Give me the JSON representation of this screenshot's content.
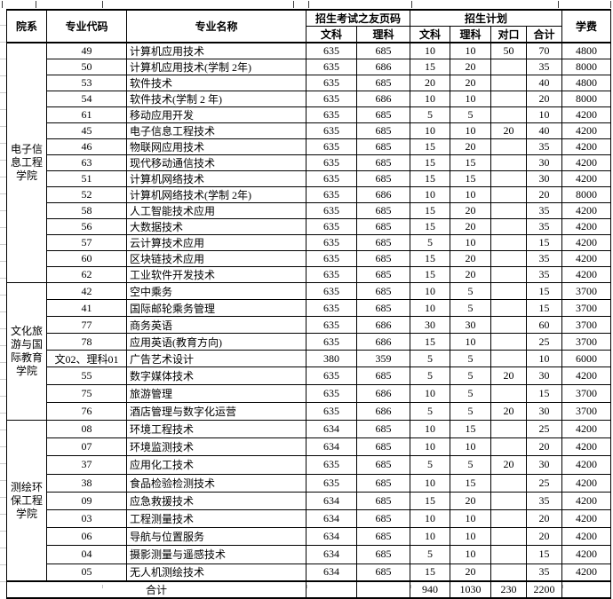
{
  "header": {
    "col_department": "院系",
    "col_major_code": "专业代码",
    "col_major_name": "专业名称",
    "group_page": "招生考试之友页码",
    "group_plan": "招生计划",
    "col_page_wenke": "文科",
    "col_page_like": "理科",
    "col_plan_wenke": "文科",
    "col_plan_like": "理科",
    "col_duikou": "对口",
    "col_heji": "合计",
    "col_tuition": "学费"
  },
  "sections": [
    {
      "department": "电子信息工程学院",
      "rows": [
        {
          "code": "49",
          "name": "计算机应用技术",
          "page_wen": "635",
          "page_li": "685",
          "plan_wen": "10",
          "plan_li": "10",
          "duikou": "50",
          "heji": "70",
          "tuition": "4800"
        },
        {
          "code": "50",
          "name": "计算机应用技术(学制 2年)",
          "page_wen": "635",
          "page_li": "686",
          "plan_wen": "15",
          "plan_li": "20",
          "duikou": "",
          "heji": "35",
          "tuition": "8000"
        },
        {
          "code": "53",
          "name": "软件技术",
          "page_wen": "635",
          "page_li": "685",
          "plan_wen": "20",
          "plan_li": "20",
          "duikou": "",
          "heji": "40",
          "tuition": "4800"
        },
        {
          "code": "54",
          "name": "软件技术(学制 2 年)",
          "page_wen": "635",
          "page_li": "686",
          "plan_wen": "10",
          "plan_li": "10",
          "duikou": "",
          "heji": "20",
          "tuition": "8000"
        },
        {
          "code": "61",
          "name": "移动应用开发",
          "page_wen": "635",
          "page_li": "685",
          "plan_wen": "5",
          "plan_li": "5",
          "duikou": "",
          "heji": "10",
          "tuition": "4200"
        },
        {
          "code": "45",
          "name": "电子信息工程技术",
          "page_wen": "635",
          "page_li": "685",
          "plan_wen": "10",
          "plan_li": "10",
          "duikou": "20",
          "heji": "40",
          "tuition": "4200"
        },
        {
          "code": "46",
          "name": "物联网应用技术",
          "page_wen": "635",
          "page_li": "685",
          "plan_wen": "15",
          "plan_li": "20",
          "duikou": "",
          "heji": "35",
          "tuition": "4200"
        },
        {
          "code": "63",
          "name": "现代移动通信技术",
          "page_wen": "635",
          "page_li": "685",
          "plan_wen": "15",
          "plan_li": "15",
          "duikou": "",
          "heji": "30",
          "tuition": "4200"
        },
        {
          "code": "51",
          "name": "计算机网络技术",
          "page_wen": "635",
          "page_li": "685",
          "plan_wen": "15",
          "plan_li": "15",
          "duikou": "",
          "heji": "30",
          "tuition": "4200"
        },
        {
          "code": "52",
          "name": "计算机网络技术(学制 2年)",
          "page_wen": "635",
          "page_li": "686",
          "plan_wen": "10",
          "plan_li": "10",
          "duikou": "",
          "heji": "20",
          "tuition": "8000"
        },
        {
          "code": "58",
          "name": "人工智能技术应用",
          "page_wen": "635",
          "page_li": "685",
          "plan_wen": "15",
          "plan_li": "20",
          "duikou": "",
          "heji": "35",
          "tuition": "4200"
        },
        {
          "code": "56",
          "name": "大数据技术",
          "page_wen": "635",
          "page_li": "685",
          "plan_wen": "15",
          "plan_li": "20",
          "duikou": "",
          "heji": "35",
          "tuition": "4200"
        },
        {
          "code": "57",
          "name": "云计算技术应用",
          "page_wen": "635",
          "page_li": "685",
          "plan_wen": "5",
          "plan_li": "10",
          "duikou": "",
          "heji": "15",
          "tuition": "4200"
        },
        {
          "code": "60",
          "name": "区块链技术应用",
          "page_wen": "635",
          "page_li": "685",
          "plan_wen": "15",
          "plan_li": "20",
          "duikou": "",
          "heji": "35",
          "tuition": "4200"
        },
        {
          "code": "62",
          "name": "工业软件开发技术",
          "page_wen": "635",
          "page_li": "685",
          "plan_wen": "15",
          "plan_li": "20",
          "duikou": "",
          "heji": "35",
          "tuition": "4200"
        }
      ]
    },
    {
      "department": "文化旅游与国际教育学院",
      "rows": [
        {
          "code": "42",
          "name": "空中乘务",
          "page_wen": "635",
          "page_li": "685",
          "plan_wen": "10",
          "plan_li": "5",
          "duikou": "",
          "heji": "15",
          "tuition": "3700"
        },
        {
          "code": "41",
          "name": "国际邮轮乘务管理",
          "page_wen": "635",
          "page_li": "685",
          "plan_wen": "10",
          "plan_li": "5",
          "duikou": "",
          "heji": "15",
          "tuition": "3700"
        },
        {
          "code": "77",
          "name": "商务英语",
          "page_wen": "635",
          "page_li": "686",
          "plan_wen": "30",
          "plan_li": "30",
          "duikou": "",
          "heji": "60",
          "tuition": "3700"
        },
        {
          "code": "78",
          "name": "应用英语(教育方向)",
          "page_wen": "635",
          "page_li": "686",
          "plan_wen": "15",
          "plan_li": "10",
          "duikou": "",
          "heji": "25",
          "tuition": "3700"
        },
        {
          "code": "文02、理科01",
          "name": "广告艺术设计",
          "page_wen": "380",
          "page_li": "359",
          "plan_wen": "5",
          "plan_li": "5",
          "duikou": "",
          "heji": "10",
          "tuition": "6000"
        },
        {
          "code": "55",
          "name": "数字媒体技术",
          "page_wen": "635",
          "page_li": "685",
          "plan_wen": "5",
          "plan_li": "5",
          "duikou": "20",
          "heji": "30",
          "tuition": "4200"
        },
        {
          "code": "75",
          "name": "旅游管理",
          "page_wen": "635",
          "page_li": "686",
          "plan_wen": "10",
          "plan_li": "5",
          "duikou": "",
          "heji": "15",
          "tuition": "3700"
        },
        {
          "code": "76",
          "name": "酒店管理与数字化运营",
          "page_wen": "635",
          "page_li": "686",
          "plan_wen": "5",
          "plan_li": "5",
          "duikou": "20",
          "heji": "30",
          "tuition": "3700"
        }
      ]
    },
    {
      "department": "测绘环保工程学院",
      "rows": [
        {
          "code": "08",
          "name": "环境工程技术",
          "page_wen": "634",
          "page_li": "685",
          "plan_wen": "10",
          "plan_li": "15",
          "duikou": "",
          "heji": "25",
          "tuition": "4200"
        },
        {
          "code": "07",
          "name": "环境监测技术",
          "page_wen": "634",
          "page_li": "685",
          "plan_wen": "10",
          "plan_li": "10",
          "duikou": "",
          "heji": "20",
          "tuition": "4200"
        },
        {
          "code": "37",
          "name": "应用化工技术",
          "page_wen": "635",
          "page_li": "685",
          "plan_wen": "5",
          "plan_li": "5",
          "duikou": "20",
          "heji": "30",
          "tuition": "4200"
        },
        {
          "code": "38",
          "name": "食品检验检测技术",
          "page_wen": "635",
          "page_li": "685",
          "plan_wen": "10",
          "plan_li": "15",
          "duikou": "",
          "heji": "25",
          "tuition": "4200"
        },
        {
          "code": "09",
          "name": "应急救援技术",
          "page_wen": "634",
          "page_li": "685",
          "plan_wen": "15",
          "plan_li": "20",
          "duikou": "",
          "heji": "35",
          "tuition": "4200"
        },
        {
          "code": "03",
          "name": "工程测量技术",
          "page_wen": "634",
          "page_li": "685",
          "plan_wen": "10",
          "plan_li": "10",
          "duikou": "",
          "heji": "20",
          "tuition": "4200"
        },
        {
          "code": "06",
          "name": "导航与位置服务",
          "page_wen": "634",
          "page_li": "685",
          "plan_wen": "10",
          "plan_li": "10",
          "duikou": "",
          "heji": "20",
          "tuition": "4200"
        },
        {
          "code": "04",
          "name": "摄影测量与遥感技术",
          "page_wen": "634",
          "page_li": "685",
          "plan_wen": "5",
          "plan_li": "10",
          "duikou": "",
          "heji": "15",
          "tuition": "4200"
        },
        {
          "code": "05",
          "name": "无人机测绘技术",
          "page_wen": "634",
          "page_li": "685",
          "plan_wen": "15",
          "plan_li": "20",
          "duikou": "",
          "heji": "35",
          "tuition": "4200"
        }
      ]
    }
  ],
  "total_row": {
    "label": "合计",
    "page_wen": "",
    "page_li": "",
    "plan_wen": "940",
    "plan_li": "1030",
    "duikou": "230",
    "heji": "2200",
    "tuition": ""
  },
  "colors": {
    "border": "#000000",
    "text": "#000000",
    "faint_grid": "#cccccc"
  }
}
